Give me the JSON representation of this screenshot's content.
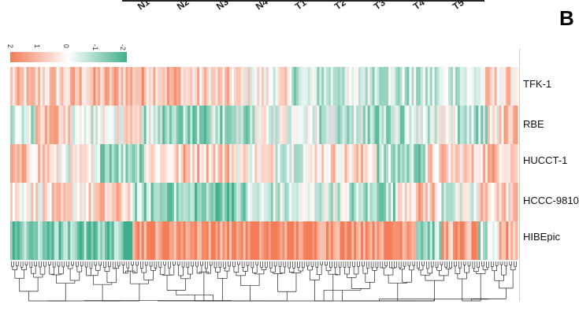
{
  "chart_data": {
    "type": "heatmap",
    "panel_letter": "B",
    "columns_top": [
      "N1",
      "N2",
      "N3",
      "N4",
      "T1",
      "T2",
      "T3",
      "T4",
      "T5"
    ],
    "rows": [
      "TFK-1",
      "RBE",
      "HUCCT-1",
      "HCCC-9810",
      "HIBEpic"
    ],
    "color_scale": {
      "ticks": [
        "2",
        "1",
        "0",
        "-1",
        "-2"
      ],
      "high_color": "#f47c56",
      "mid_color": "#ffffff",
      "low_color": "#3fae8c",
      "missing_color": "#dcdcdc"
    },
    "row_profiles": [
      {
        "name": "TFK-1",
        "segments": [
          [
            0.0,
            0.7
          ],
          [
            0.12,
            0.9
          ],
          [
            0.2,
            1.1
          ],
          [
            0.34,
            0.6
          ],
          [
            0.45,
            0.2
          ],
          [
            0.55,
            -0.6
          ],
          [
            0.65,
            -0.4
          ],
          [
            0.75,
            -0.7
          ],
          [
            0.85,
            -0.3
          ],
          [
            0.93,
            0.5
          ]
        ]
      },
      {
        "name": "RBE",
        "segments": [
          [
            0.0,
            -0.5
          ],
          [
            0.05,
            1.0
          ],
          [
            0.12,
            -0.2
          ],
          [
            0.2,
            0.2
          ],
          [
            0.26,
            -0.9
          ],
          [
            0.36,
            -1.0
          ],
          [
            0.48,
            -0.2
          ],
          [
            0.56,
            -0.6
          ],
          [
            0.68,
            -1.0
          ],
          [
            0.78,
            -0.3
          ],
          [
            0.88,
            -1.0
          ],
          [
            0.94,
            0.8
          ]
        ]
      },
      {
        "name": "HUCCT-1",
        "segments": [
          [
            0.0,
            0.8
          ],
          [
            0.08,
            0.0
          ],
          [
            0.16,
            -0.8
          ],
          [
            0.26,
            0.5
          ],
          [
            0.34,
            0.9
          ],
          [
            0.44,
            0.3
          ],
          [
            0.52,
            -0.1
          ],
          [
            0.6,
            0.6
          ],
          [
            0.72,
            -0.9
          ],
          [
            0.82,
            0.6
          ],
          [
            0.92,
            1.0
          ]
        ]
      },
      {
        "name": "HCCC-9810",
        "segments": [
          [
            0.0,
            0.4
          ],
          [
            0.16,
            0.7
          ],
          [
            0.24,
            -1.0
          ],
          [
            0.36,
            -1.3
          ],
          [
            0.46,
            -0.6
          ],
          [
            0.56,
            -0.3
          ],
          [
            0.66,
            -0.9
          ],
          [
            0.76,
            0.9
          ],
          [
            0.84,
            -0.4
          ],
          [
            0.92,
            0.7
          ]
        ]
      },
      {
        "name": "HIBEpic",
        "segments": [
          [
            0.0,
            -1.3
          ],
          [
            0.24,
            1.7
          ],
          [
            0.5,
            1.8
          ],
          [
            0.8,
            -1.0
          ],
          [
            0.85,
            1.3
          ],
          [
            0.92,
            -0.8
          ],
          [
            0.96,
            1.2
          ]
        ]
      }
    ],
    "dendrogram": "hierarchical clustering of columns (rendered below heatmap)"
  }
}
